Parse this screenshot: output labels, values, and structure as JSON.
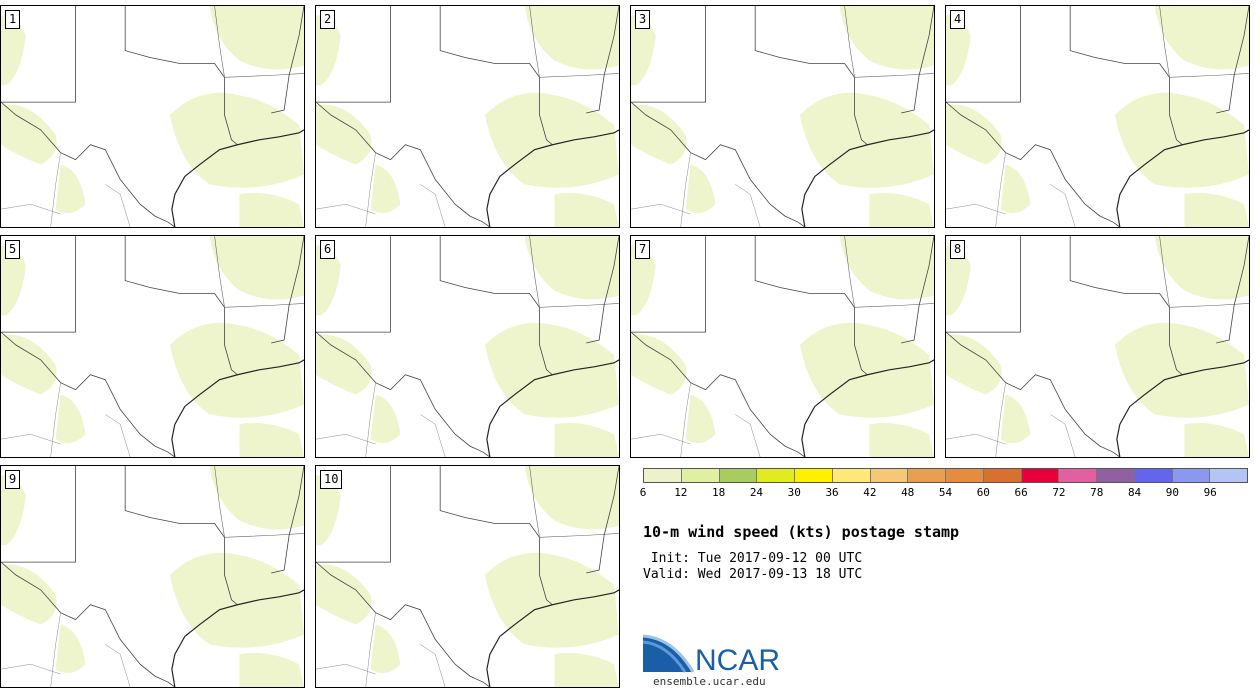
{
  "panels": [
    {
      "label": "1"
    },
    {
      "label": "2"
    },
    {
      "label": "3"
    },
    {
      "label": "4"
    },
    {
      "label": "5"
    },
    {
      "label": "6"
    },
    {
      "label": "7"
    },
    {
      "label": "8"
    },
    {
      "label": "9"
    },
    {
      "label": "10"
    }
  ],
  "colorbar": {
    "colors": [
      "#eef2cc",
      "#dff0a0",
      "#a9cc60",
      "#e0ec20",
      "#fff000",
      "#ffe878",
      "#f5c878",
      "#e8a050",
      "#e58c40",
      "#d87030",
      "#e8003a",
      "#e060a0",
      "#9060a0",
      "#6464ec",
      "#8c98f0",
      "#b4c4f4"
    ],
    "ticks": [
      "6",
      "12",
      "18",
      "24",
      "30",
      "36",
      "42",
      "48",
      "54",
      "60",
      "66",
      "72",
      "78",
      "84",
      "90",
      "96"
    ]
  },
  "title": "10-m wind speed (kts) postage stamp",
  "init": " Init: Tue 2017-09-12 00 UTC",
  "valid": "Valid: Wed 2017-09-13 18 UTC",
  "logo": {
    "text": "NCAR",
    "url": "ensemble.ucar.edu"
  },
  "map_fill_color": "#eef5cc"
}
